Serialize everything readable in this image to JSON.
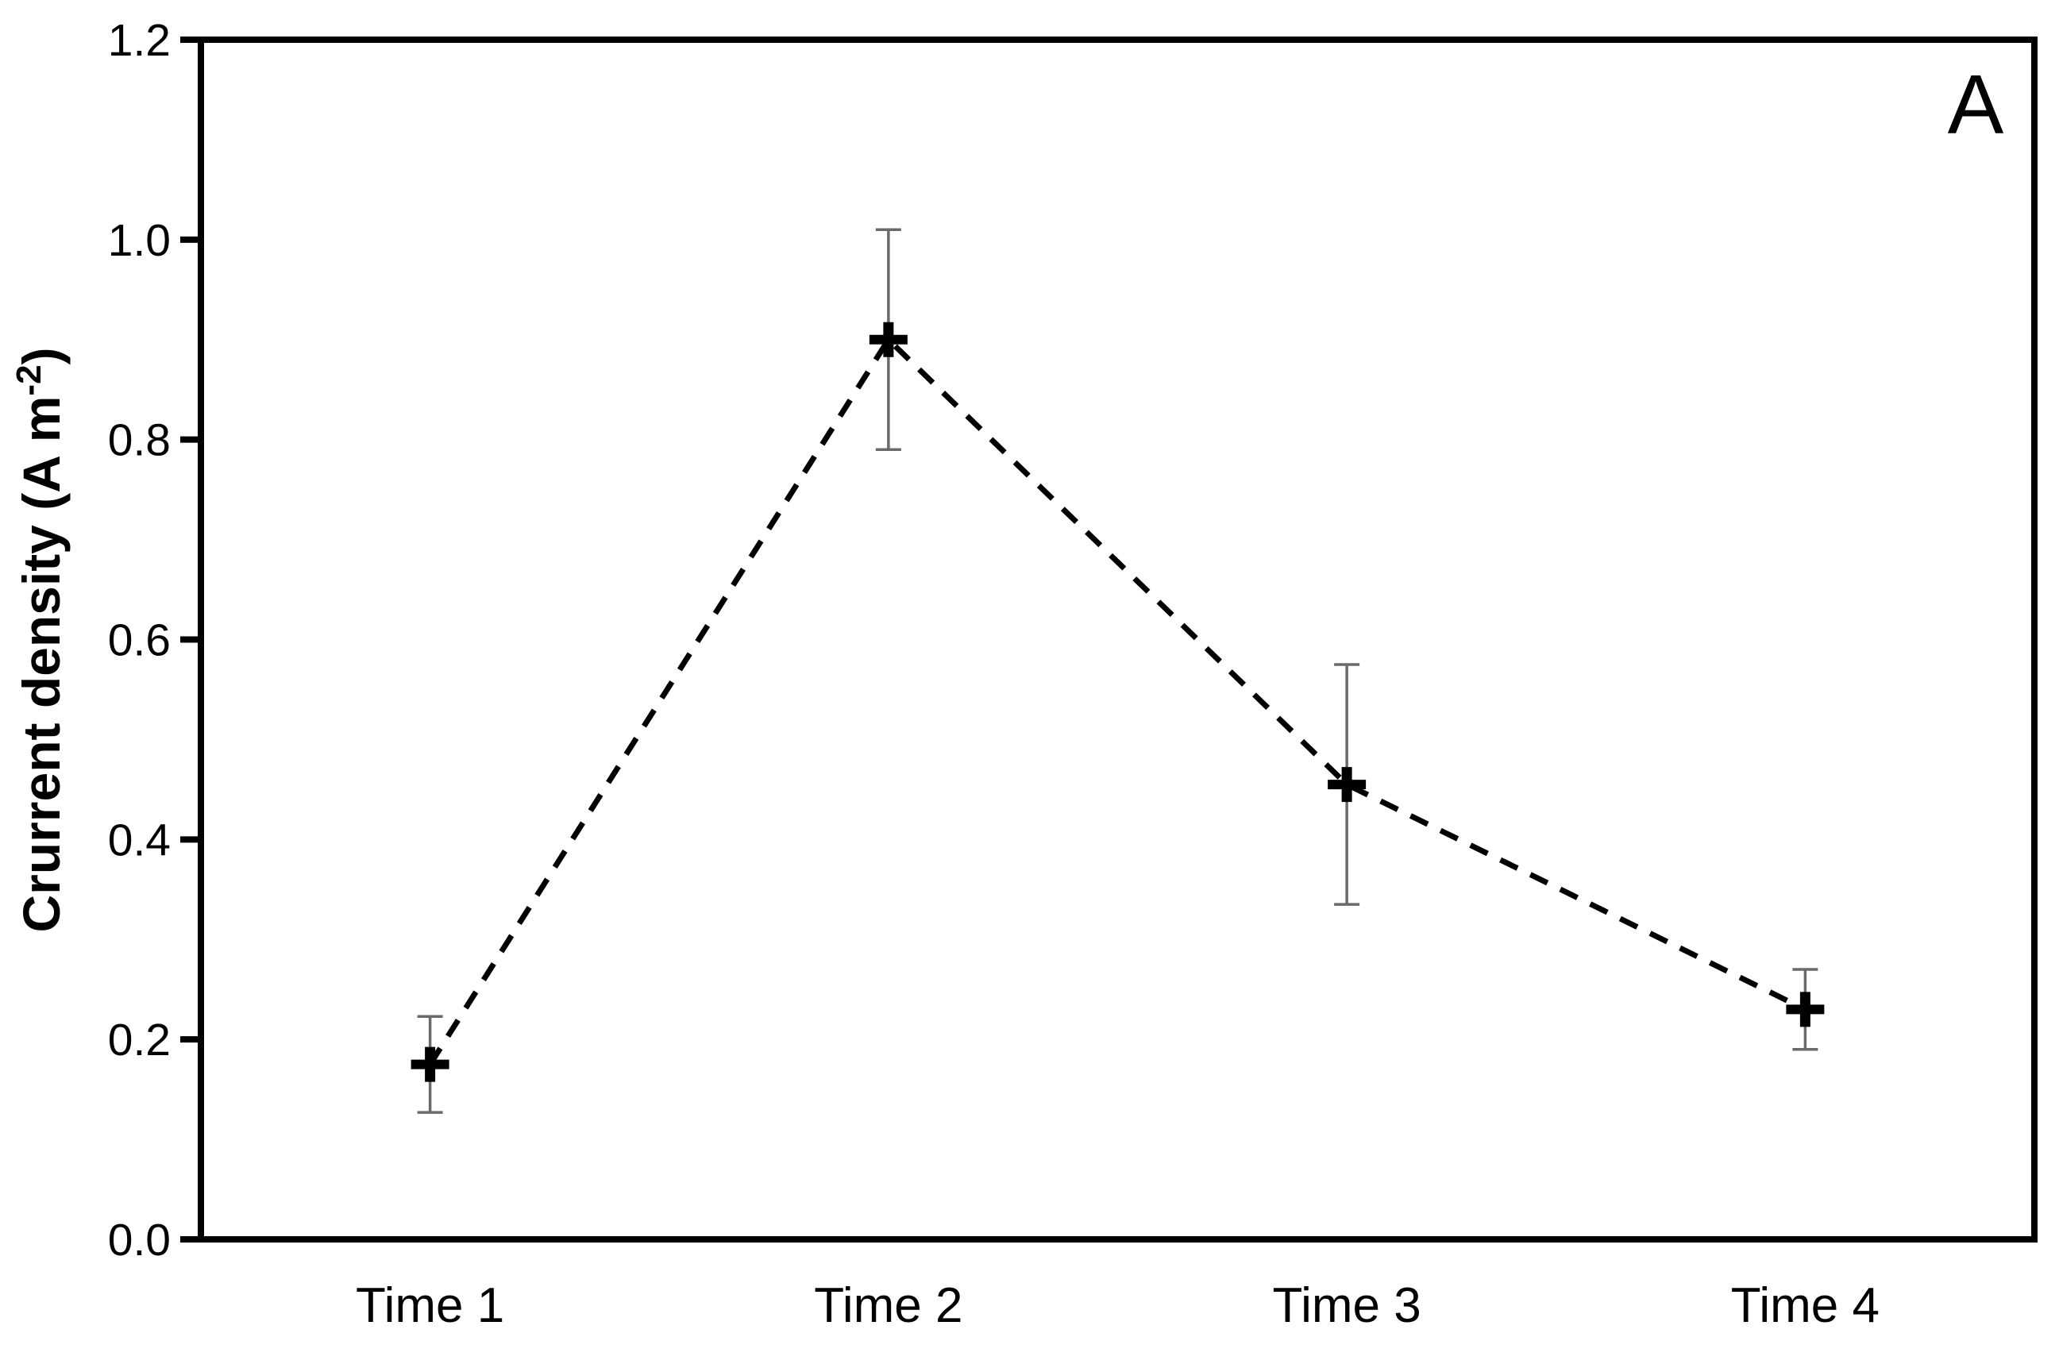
{
  "figure": {
    "panel_label": "A",
    "y_axis_title": {
      "main": "Crurrent density (A m",
      "superscript": "-2",
      "close": ")"
    }
  },
  "chart_data": {
    "type": "line",
    "title": "",
    "xlabel": "",
    "ylabel": "Crurrent density (A m^-2)",
    "panel_label": "A",
    "categories": [
      "Time 1",
      "Time 2",
      "Time 3",
      "Time 4"
    ],
    "series": [
      {
        "name": "current density",
        "values": [
          0.175,
          0.9,
          0.455,
          0.23
        ],
        "errors": [
          0.048,
          0.11,
          0.12,
          0.04
        ],
        "line_style": "dashed",
        "marker": "plus"
      }
    ],
    "ylim": [
      0.0,
      1.2
    ],
    "ytick_labels": [
      "0.0",
      "0.2",
      "0.4",
      "0.6",
      "0.8",
      "1.0",
      "1.2"
    ],
    "ytick_values": [
      0.0,
      0.2,
      0.4,
      0.6,
      0.8,
      1.0,
      1.2
    ],
    "grid": false,
    "legend": "none",
    "colors": {
      "line": "#000000",
      "marker": "#000000",
      "error_bar": "#6a6a6a",
      "axis": "#000000",
      "text": "#000000",
      "background": "#ffffff"
    }
  }
}
